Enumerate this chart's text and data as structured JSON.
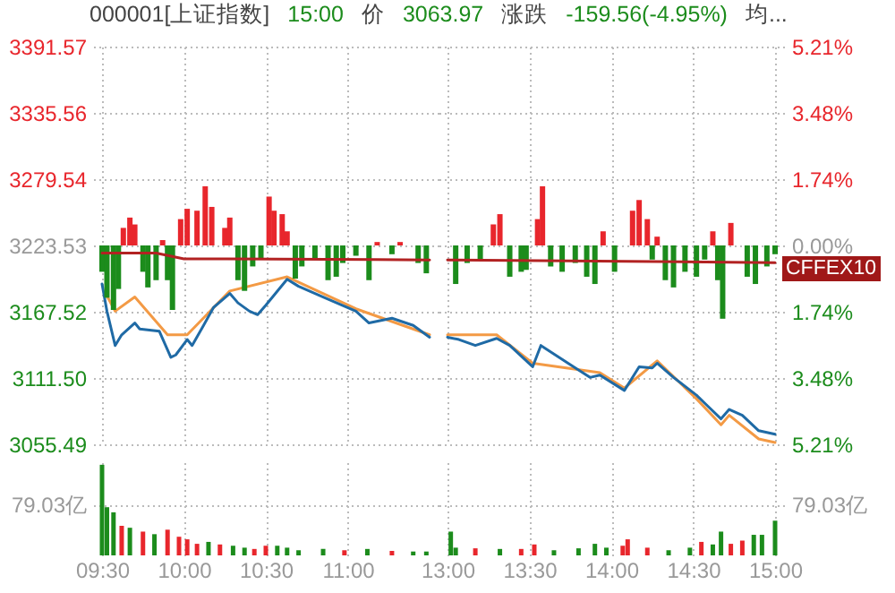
{
  "chart_data": [
    {
      "type": "line",
      "title": "000001[上证指数]",
      "annotations": [
        "15:00",
        "价",
        "3063.97",
        "涨跌",
        "-159.56(-4.95%)",
        "均..."
      ],
      "xlim": [
        9.5,
        11.5
      ],
      "xticks": [
        9.5,
        10,
        10.5,
        11
      ],
      "ylim": [
        3055.49,
        3391.57
      ],
      "yticks": [
        3391.57,
        3335.56,
        3279.54,
        3223.53,
        3167.52,
        {
          "value": 3111.5,
          "label": "3111.50"
        },
        3055.49
      ],
      "y2lim": [
        -5.21,
        5.21
      ],
      "grid": true,
      "tick_labels": "y",
      "series": [
        {
          "type": "bar",
          "axis": "y2",
          "x": [
            9.5,
            9.53,
            9.57,
            9.6,
            9.63,
            9.67,
            9.7,
            9.75,
            9.78,
            9.83,
            9.87,
            9.9,
            9.93,
            9.98,
            10.02,
            10.08,
            10.13,
            10.17,
            10.25,
            10.28,
            10.33,
            10.37,
            10.42,
            10.47,
            10.52,
            10.55,
            10.6,
            10.63,
            10.68,
            10.72,
            10.8,
            10.88,
            10.93,
            10.97,
            11.05,
            11.13,
            11.18,
            11.27,
            11.32,
            11.43,
            11.48
          ],
          "values": [
            -0.69,
            -1.37,
            -1.69,
            -1.14,
            0.46,
            0.73,
            0.55,
            -0.69,
            -1.1,
            -0.91,
            0.14,
            -0.91,
            -1.69,
            0.69,
            0.96,
            0.91,
            1.55,
            1.01,
            0.46,
            0.73,
            -0.91,
            -1.19,
            -0.55,
            -0.37,
            1.28,
            0.91,
            0.82,
            0.37,
            -0.87,
            -0.55,
            -0.37,
            -0.91,
            -0.82,
            -0.46,
            -0.27,
            -0.91,
            0.09,
            -0.23,
            0.09,
            -0.46,
            -0.73
          ],
          "colors": [
            "#1c8c1c",
            "#1c8c1c",
            "#1c8c1c",
            "#1c8c1c",
            "#e8262c",
            "#e8262c",
            "#e8262c",
            "#1c8c1c",
            "#1c8c1c",
            "#1c8c1c",
            "#e8262c",
            "#1c8c1c",
            "#1c8c1c",
            "#e8262c",
            "#e8262c",
            "#e8262c",
            "#e8262c",
            "#e8262c",
            "#e8262c",
            "#e8262c",
            "#1c8c1c",
            "#1c8c1c",
            "#1c8c1c",
            "#1c8c1c",
            "#e8262c",
            "#e8262c",
            "#e8262c",
            "#e8262c",
            "#1c8c1c",
            "#1c8c1c",
            "#1c8c1c",
            "#1c8c1c",
            "#1c8c1c",
            "#1c8c1c",
            "#1c8c1c",
            "#1c8c1c",
            "#e8262c",
            "#1c8c1c",
            "#e8262c",
            "#1c8c1c",
            "#1c8c1c"
          ]
        },
        {
          "type": "line",
          "axis": "y2",
          "color": "#b22222",
          "x": [
            9.5,
            9.83,
            10,
            11.17,
            11.5
          ],
          "values": [
            -0.2,
            -0.2,
            -0.35,
            -0.37,
            -0.38
          ]
        },
        {
          "color": "#f39a45",
          "x": [
            9.53,
            9.58,
            9.7,
            9.9,
            10.02,
            10.28,
            10.63,
            11.05,
            11.5
          ],
          "values": [
            3181,
            3168,
            3180,
            3148,
            3148,
            3185,
            3197,
            3170,
            3148
          ]
        },
        {
          "color": "#1f6aa5",
          "x": [
            9.5,
            9.53,
            9.58,
            9.62,
            9.7,
            9.73,
            9.85,
            9.92,
            9.95,
            10.02,
            10.05,
            10.12,
            10.18,
            10.28,
            10.33,
            10.4,
            10.45,
            10.5,
            10.63,
            10.7,
            10.85,
            11.05,
            11.13,
            11.27,
            11.4,
            11.5
          ],
          "values": [
            3191,
            3168,
            3139,
            3148,
            3158,
            3153,
            3151,
            3129,
            3131,
            3144,
            3139,
            3156,
            3171,
            3183,
            3175,
            3168,
            3165,
            3173,
            3195,
            3189,
            3180,
            3168,
            3158,
            3162,
            3156,
            3146
          ]
        }
      ]
    },
    {
      "type": "line",
      "annotations": [
        "CFFEX10"
      ],
      "xlim": [
        13,
        15
      ],
      "xticks": [
        13,
        13.5,
        14,
        14.5,
        15
      ],
      "ylim": [
        3055.49,
        3391.57
      ],
      "y2lim": [
        -5.21,
        5.21
      ],
      "y2ticks": [
        {
          "value": 5.21,
          "label": "5.21%"
        },
        {
          "value": 3.48,
          "label": "3.48%"
        },
        {
          "value": 1.74,
          "label": "1.74%"
        },
        {
          "value": 0,
          "label": "0.00%"
        },
        {
          "value": -1.74,
          "label": "1.74%"
        },
        {
          "value": -3.48,
          "label": "3.48%"
        },
        {
          "value": -5.21,
          "label": "5.21%"
        }
      ],
      "grid": true,
      "tick_labels": "y",
      "series": [
        {
          "type": "bar",
          "axis": "y2",
          "x": [
            13.05,
            13.12,
            13.2,
            13.28,
            13.32,
            13.38,
            13.45,
            13.48,
            13.55,
            13.58,
            13.63,
            13.7,
            13.78,
            13.85,
            13.9,
            13.95,
            14.02,
            14.13,
            14.17,
            14.22,
            14.25,
            14.28,
            14.33,
            14.38,
            14.45,
            14.52,
            14.57,
            14.62,
            14.65,
            14.68,
            14.73,
            14.83,
            14.88,
            14.95,
            15
          ],
          "values": [
            -1.01,
            -0.46,
            -0.37,
            0.55,
            0.82,
            -0.82,
            -0.69,
            -0.64,
            0.69,
            1.55,
            -0.55,
            -0.69,
            -0.46,
            -0.82,
            -1.01,
            0.37,
            -0.69,
            0.91,
            1.19,
            0.69,
            -0.37,
            0.23,
            -0.91,
            -1.1,
            -0.69,
            -0.82,
            -0.37,
            0.37,
            -0.91,
            -1.92,
            0.59,
            -0.82,
            -1.01,
            -0.55,
            -0.23
          ],
          "colors": [
            "#1c8c1c",
            "#1c8c1c",
            "#1c8c1c",
            "#e8262c",
            "#e8262c",
            "#1c8c1c",
            "#1c8c1c",
            "#1c8c1c",
            "#e8262c",
            "#e8262c",
            "#1c8c1c",
            "#1c8c1c",
            "#1c8c1c",
            "#1c8c1c",
            "#1c8c1c",
            "#e8262c",
            "#1c8c1c",
            "#e8262c",
            "#e8262c",
            "#e8262c",
            "#1c8c1c",
            "#e8262c",
            "#1c8c1c",
            "#1c8c1c",
            "#1c8c1c",
            "#1c8c1c",
            "#1c8c1c",
            "#e8262c",
            "#1c8c1c",
            "#1c8c1c",
            "#e8262c",
            "#1c8c1c",
            "#1c8c1c",
            "#1c8c1c",
            "#1c8c1c"
          ]
        },
        {
          "type": "line",
          "axis": "y2",
          "color": "#b22222",
          "x": [
            13,
            15
          ],
          "values": [
            -0.38,
            -0.45
          ]
        },
        {
          "color": "#f39a45",
          "x": [
            13,
            13.3,
            13.52,
            13.93,
            14.08,
            14.28,
            14.52,
            14.67,
            14.72,
            14.9,
            15
          ],
          "values": [
            3148,
            3148,
            3124,
            3116,
            3103,
            3126,
            3094,
            3072,
            3080,
            3060,
            3057
          ]
        },
        {
          "color": "#1f6aa5",
          "x": [
            13,
            13.07,
            13.17,
            13.3,
            13.38,
            13.52,
            13.57,
            13.77,
            13.87,
            13.93,
            14.08,
            14.17,
            14.25,
            14.28,
            14.38,
            14.52,
            14.58,
            14.67,
            14.72,
            14.8,
            14.9,
            15
          ],
          "values": [
            3146,
            3144,
            3139,
            3145,
            3139,
            3121,
            3139,
            3121,
            3112,
            3114,
            3101,
            3121,
            3120,
            3124,
            3112,
            3097,
            3089,
            3077,
            3085,
            3080,
            3067,
            3064
          ]
        }
      ]
    },
    {
      "type": "bar",
      "xlim": [
        9.5,
        11.5
      ],
      "xticks": [
        {
          "value": 9.5,
          "label": "09:30"
        },
        {
          "value": 10,
          "label": "10:00"
        },
        {
          "value": 10.5,
          "label": "10:30"
        },
        {
          "value": 11,
          "label": "11:00"
        }
      ],
      "ylim": [
        0,
        145
      ],
      "yticks": [
        {
          "value": 79.03,
          "label": "79.03亿"
        }
      ],
      "grid": true,
      "x": [
        9.5,
        9.53,
        9.57,
        9.62,
        9.67,
        9.75,
        9.82,
        9.9,
        9.97,
        10.02,
        10.08,
        10.15,
        10.22,
        10.3,
        10.37,
        10.43,
        10.5,
        10.57,
        10.63,
        10.7,
        10.85,
        10.98,
        11.12,
        11.27,
        11.4,
        11.48
      ],
      "values": [
        141,
        75,
        67,
        46,
        43,
        37,
        33,
        40,
        29,
        25,
        18,
        21,
        17,
        15,
        12,
        10,
        15,
        15,
        12,
        8,
        10,
        8,
        10,
        7,
        6,
        6
      ],
      "colors": [
        "#1c8c1c",
        "#1c8c1c",
        "#1c8c1c",
        "#e8262c",
        "#1c8c1c",
        "#e8262c",
        "#1c8c1c",
        "#e8262c",
        "#e8262c",
        "#e8262c",
        "#e8262c",
        "#1c8c1c",
        "#e8262c",
        "#1c8c1c",
        "#1c8c1c",
        "#e8262c",
        "#e8262c",
        "#1c8c1c",
        "#1c8c1c",
        "#1c8c1c",
        "#1c8c1c",
        "#e8262c",
        "#1c8c1c",
        "#e8262c",
        "#1c8c1c",
        "#1c8c1c"
      ]
    },
    {
      "type": "bar",
      "xlim": [
        13,
        15
      ],
      "xticks": [
        {
          "value": 13,
          "label": "13:00"
        },
        {
          "value": 13.5,
          "label": "13:30"
        },
        {
          "value": 14,
          "label": "14:00"
        },
        {
          "value": 14.5,
          "label": "14:30"
        },
        {
          "value": 15,
          "label": "15:00"
        }
      ],
      "y2lim": [
        0,
        145
      ],
      "y2ticks": [
        {
          "value": 79.03,
          "label": "79.03亿"
        }
      ],
      "grid": true,
      "series": [
        {
          "axis": "y2",
          "x": [
            13.02,
            13.05,
            13.17,
            13.32,
            13.45,
            13.53,
            13.65,
            13.8,
            13.9,
            13.97,
            14.07,
            14.1,
            14.22,
            14.35,
            14.48,
            14.55,
            14.62,
            14.67,
            14.73,
            14.8,
            14.87,
            14.92,
            15
          ],
          "values": [
            37,
            12,
            11,
            10,
            10,
            17,
            8,
            11,
            18,
            12,
            15,
            25,
            12,
            8,
            12,
            21,
            17,
            37,
            18,
            23,
            32,
            32,
            54
          ],
          "colors": [
            "#1c8c1c",
            "#1c8c1c",
            "#e8262c",
            "#1c8c1c",
            "#e8262c",
            "#e8262c",
            "#1c8c1c",
            "#1c8c1c",
            "#1c8c1c",
            "#1c8c1c",
            "#e8262c",
            "#e8262c",
            "#e8262c",
            "#1c8c1c",
            "#1c8c1c",
            "#e8262c",
            "#1c8c1c",
            "#1c8c1c",
            "#e8262c",
            "#e8262c",
            "#1c8c1c",
            "#1c8c1c",
            "#1c8c1c"
          ]
        }
      ]
    }
  ]
}
